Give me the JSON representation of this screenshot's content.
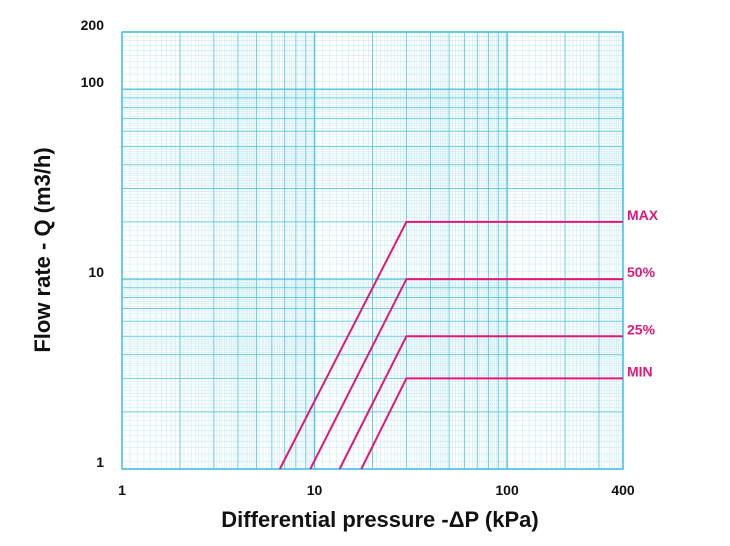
{
  "chart_data": {
    "type": "line",
    "xlabel": "Differential pressure -ΔP (kPa)",
    "ylabel": "Flow rate - Q (m3/h)",
    "xscale": "log",
    "yscale": "log",
    "xlim": [
      1,
      400
    ],
    "ylim": [
      1,
      200
    ],
    "grid": true,
    "x_ticks": [
      {
        "value": 1,
        "label": "1"
      },
      {
        "value": 10,
        "label": "10"
      },
      {
        "value": 100,
        "label": "100"
      },
      {
        "value": 400,
        "label": "400"
      }
    ],
    "y_ticks": [
      {
        "value": 1,
        "label": "1"
      },
      {
        "value": 10,
        "label": "10"
      },
      {
        "value": 100,
        "label": "100"
      },
      {
        "value": 200,
        "label": "200"
      }
    ],
    "series": [
      {
        "name": "MAX",
        "x": [
          6.6,
          30,
          400
        ],
        "y": [
          1,
          20,
          20
        ]
      },
      {
        "name": "50%",
        "x": [
          9.5,
          30,
          400
        ],
        "y": [
          1,
          10,
          10
        ]
      },
      {
        "name": "25%",
        "x": [
          13.5,
          30,
          400
        ],
        "y": [
          1,
          5,
          5
        ]
      },
      {
        "name": "MIN",
        "x": [
          17.5,
          30,
          400
        ],
        "y": [
          1,
          3,
          3
        ]
      }
    ],
    "colors": {
      "grid": "#4ec3dd",
      "series": "#e0187a"
    }
  }
}
